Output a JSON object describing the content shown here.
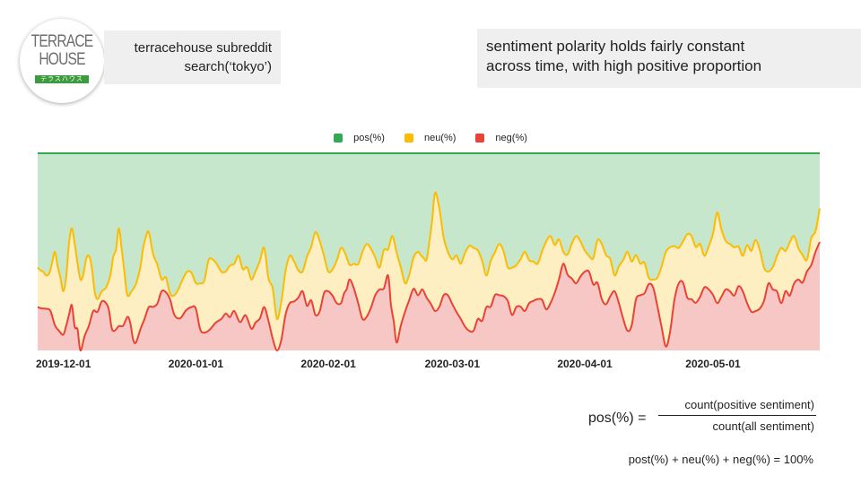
{
  "logo": {
    "line1": "TERRACE",
    "line2": "HOUSE",
    "tagline": "テラスハウス"
  },
  "subtitle": {
    "line1": "terracehouse subreddit",
    "line2": "search(‘tokyo’)"
  },
  "note": {
    "line1": "sentiment polarity holds fairly constant",
    "line2": "across time, with high positive proportion"
  },
  "formula": {
    "lhs": "pos(%) =",
    "numerator": "count(positive sentiment)",
    "denominator": "count(all sentiment)",
    "sum": "post(%) + neu(%) + neg(%) = 100%"
  },
  "chart_data": {
    "type": "area",
    "stacked": true,
    "legend_position": "top",
    "grid": false,
    "ylim": [
      0,
      100
    ],
    "x_start": "2019-12-01",
    "x_end": "2020-06-01",
    "x_ticks": [
      "2019-12-01",
      "2020-01-01",
      "2020-02-01",
      "2020-03-01",
      "2020-04-01",
      "2020-05-01"
    ],
    "series": [
      {
        "name": "neg(%)",
        "color": "#ea4335",
        "fill": "#f6c7c4"
      },
      {
        "name": "neu(%)",
        "color": "#fbbc04",
        "fill": "#feefc3"
      },
      {
        "name": "pos(%)",
        "color": "#34a853",
        "fill": "#c6e7cc"
      }
    ],
    "neg_control": [
      [
        "2019-12-01",
        22
      ],
      [
        "2019-12-04",
        20
      ],
      [
        "2019-12-07",
        8
      ],
      [
        "2019-12-09",
        23
      ],
      [
        "2019-12-11",
        0
      ],
      [
        "2019-12-14",
        20
      ],
      [
        "2019-12-17",
        24
      ],
      [
        "2019-12-19",
        10
      ],
      [
        "2019-12-22",
        17
      ],
      [
        "2019-12-24",
        4
      ],
      [
        "2019-12-27",
        22
      ],
      [
        "2019-12-30",
        30
      ],
      [
        "2020-01-02",
        18
      ],
      [
        "2020-01-06",
        22
      ],
      [
        "2020-01-09",
        9
      ],
      [
        "2020-01-13",
        16
      ],
      [
        "2020-01-16",
        20
      ],
      [
        "2020-01-20",
        11
      ],
      [
        "2020-01-23",
        22
      ],
      [
        "2020-01-26",
        0
      ],
      [
        "2020-01-29",
        24
      ],
      [
        "2020-02-01",
        30
      ],
      [
        "2020-02-04",
        18
      ],
      [
        "2020-02-07",
        30
      ],
      [
        "2020-02-10",
        24
      ],
      [
        "2020-02-12",
        36
      ],
      [
        "2020-02-15",
        16
      ],
      [
        "2020-02-18",
        28
      ],
      [
        "2020-02-21",
        38
      ],
      [
        "2020-02-23",
        4
      ],
      [
        "2020-02-26",
        26
      ],
      [
        "2020-02-29",
        31
      ],
      [
        "2020-03-03",
        20
      ],
      [
        "2020-03-06",
        28
      ],
      [
        "2020-03-09",
        16
      ],
      [
        "2020-03-12",
        10
      ],
      [
        "2020-03-15",
        22
      ],
      [
        "2020-03-18",
        28
      ],
      [
        "2020-03-21",
        18
      ],
      [
        "2020-03-24",
        20
      ],
      [
        "2020-03-27",
        26
      ],
      [
        "2020-03-30",
        24
      ],
      [
        "2020-04-02",
        44
      ],
      [
        "2020-04-05",
        34
      ],
      [
        "2020-04-08",
        40
      ],
      [
        "2020-04-11",
        26
      ],
      [
        "2020-04-14",
        30
      ],
      [
        "2020-04-17",
        10
      ],
      [
        "2020-04-20",
        28
      ],
      [
        "2020-04-23",
        32
      ],
      [
        "2020-04-26",
        2
      ],
      [
        "2020-04-29",
        34
      ],
      [
        "2020-05-02",
        26
      ],
      [
        "2020-05-05",
        32
      ],
      [
        "2020-05-08",
        24
      ],
      [
        "2020-05-11",
        30
      ],
      [
        "2020-05-14",
        30
      ],
      [
        "2020-05-17",
        20
      ],
      [
        "2020-05-20",
        34
      ],
      [
        "2020-05-23",
        24
      ],
      [
        "2020-05-26",
        34
      ],
      [
        "2020-05-29",
        40
      ],
      [
        "2020-06-01",
        55
      ]
    ],
    "neu_top_control": [
      [
        "2019-12-01",
        42
      ],
      [
        "2019-12-03",
        38
      ],
      [
        "2019-12-05",
        50
      ],
      [
        "2019-12-07",
        30
      ],
      [
        "2019-12-09",
        62
      ],
      [
        "2019-12-11",
        36
      ],
      [
        "2019-12-13",
        48
      ],
      [
        "2019-12-15",
        26
      ],
      [
        "2019-12-18",
        38
      ],
      [
        "2019-12-20",
        62
      ],
      [
        "2019-12-22",
        28
      ],
      [
        "2019-12-25",
        42
      ],
      [
        "2019-12-27",
        60
      ],
      [
        "2019-12-30",
        36
      ],
      [
        "2020-01-02",
        28
      ],
      [
        "2020-01-05",
        40
      ],
      [
        "2020-01-08",
        34
      ],
      [
        "2020-01-11",
        46
      ],
      [
        "2020-01-14",
        40
      ],
      [
        "2020-01-17",
        48
      ],
      [
        "2020-01-20",
        36
      ],
      [
        "2020-01-23",
        52
      ],
      [
        "2020-01-26",
        16
      ],
      [
        "2020-01-29",
        48
      ],
      [
        "2020-02-01",
        40
      ],
      [
        "2020-02-04",
        60
      ],
      [
        "2020-02-07",
        40
      ],
      [
        "2020-02-10",
        52
      ],
      [
        "2020-02-13",
        44
      ],
      [
        "2020-02-16",
        54
      ],
      [
        "2020-02-19",
        42
      ],
      [
        "2020-02-22",
        58
      ],
      [
        "2020-02-25",
        34
      ],
      [
        "2020-02-28",
        50
      ],
      [
        "2020-03-01",
        46
      ],
      [
        "2020-03-03",
        80
      ],
      [
        "2020-03-06",
        50
      ],
      [
        "2020-03-09",
        44
      ],
      [
        "2020-03-12",
        52
      ],
      [
        "2020-03-15",
        38
      ],
      [
        "2020-03-18",
        54
      ],
      [
        "2020-03-21",
        42
      ],
      [
        "2020-03-24",
        50
      ],
      [
        "2020-03-27",
        44
      ],
      [
        "2020-03-30",
        58
      ],
      [
        "2020-04-02",
        50
      ],
      [
        "2020-04-05",
        58
      ],
      [
        "2020-04-08",
        48
      ],
      [
        "2020-04-11",
        54
      ],
      [
        "2020-04-14",
        38
      ],
      [
        "2020-04-17",
        50
      ],
      [
        "2020-04-20",
        44
      ],
      [
        "2020-04-23",
        36
      ],
      [
        "2020-04-26",
        50
      ],
      [
        "2020-04-29",
        52
      ],
      [
        "2020-05-02",
        58
      ],
      [
        "2020-05-05",
        48
      ],
      [
        "2020-05-08",
        70
      ],
      [
        "2020-05-11",
        54
      ],
      [
        "2020-05-14",
        48
      ],
      [
        "2020-05-17",
        56
      ],
      [
        "2020-05-20",
        40
      ],
      [
        "2020-05-23",
        52
      ],
      [
        "2020-05-26",
        58
      ],
      [
        "2020-05-29",
        46
      ],
      [
        "2020-06-01",
        72
      ]
    ]
  }
}
